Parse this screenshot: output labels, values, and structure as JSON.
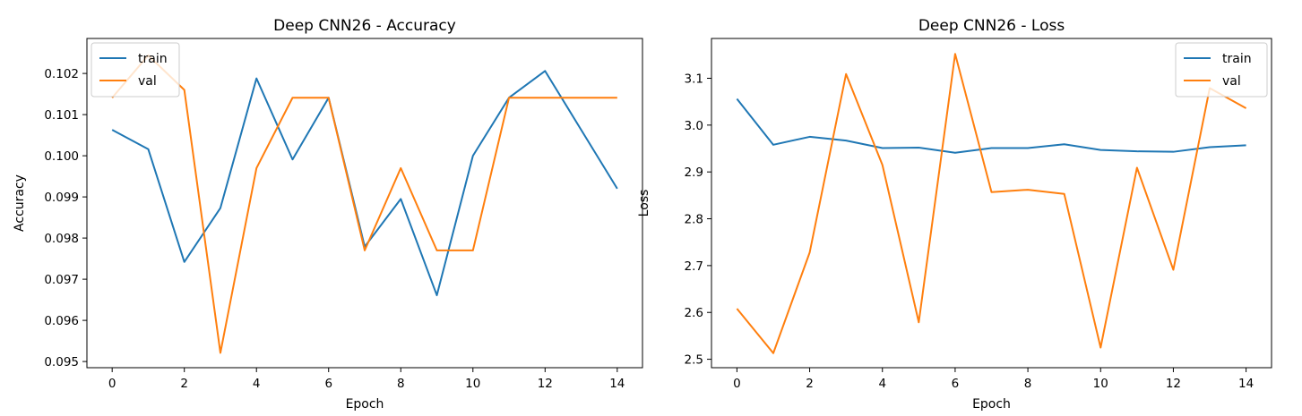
{
  "colors": {
    "train": "#1f77b4",
    "val": "#ff7f0e"
  },
  "chart_data": [
    {
      "type": "line",
      "title": "Deep CNN26 - Accuracy",
      "xlabel": "Epoch",
      "ylabel": "Accuracy",
      "x": [
        0,
        1,
        2,
        3,
        4,
        5,
        6,
        7,
        8,
        9,
        10,
        11,
        12,
        13,
        14
      ],
      "xlim": [
        -0.7,
        14.7
      ],
      "ylim": [
        0.09485,
        0.10285
      ],
      "xticks": [
        0,
        2,
        4,
        6,
        8,
        10,
        12,
        14
      ],
      "xtick_labels": [
        "0",
        "2",
        "4",
        "6",
        "8",
        "10",
        "12",
        "14"
      ],
      "yticks": [
        0.095,
        0.096,
        0.097,
        0.098,
        0.099,
        0.1,
        0.101,
        0.102
      ],
      "ytick_labels": [
        "0.095",
        "0.096",
        "0.097",
        "0.098",
        "0.099",
        "0.100",
        "0.101",
        "0.102"
      ],
      "legend": "upper-left",
      "series": [
        {
          "name": "train",
          "values": [
            0.10063,
            0.10016,
            0.09742,
            0.09873,
            0.10188,
            0.09991,
            0.10141,
            0.09779,
            0.09895,
            0.09661,
            0.1,
            0.10141,
            0.10206,
            0.10063,
            0.0992
          ]
        },
        {
          "name": "val",
          "values": [
            0.10141,
            0.10244,
            0.1016,
            0.09521,
            0.0997,
            0.10141,
            0.10141,
            0.0977,
            0.0997,
            0.0977,
            0.0977,
            0.10141,
            0.10141,
            0.10141,
            0.10141
          ]
        }
      ]
    },
    {
      "type": "line",
      "title": "Deep CNN26 - Loss",
      "xlabel": "Epoch",
      "ylabel": "Loss",
      "x": [
        0,
        1,
        2,
        3,
        4,
        5,
        6,
        7,
        8,
        9,
        10,
        11,
        12,
        13,
        14
      ],
      "xlim": [
        -0.7,
        14.7
      ],
      "ylim": [
        2.482,
        3.185
      ],
      "xticks": [
        0,
        2,
        4,
        6,
        8,
        10,
        12,
        14
      ],
      "xtick_labels": [
        "0",
        "2",
        "4",
        "6",
        "8",
        "10",
        "12",
        "14"
      ],
      "yticks": [
        2.5,
        2.6,
        2.7,
        2.8,
        2.9,
        3.0,
        3.1
      ],
      "ytick_labels": [
        "2.5",
        "2.6",
        "2.7",
        "2.8",
        "2.9",
        "3.0",
        "3.1"
      ],
      "legend": "upper-right",
      "series": [
        {
          "name": "train",
          "values": [
            3.056,
            2.958,
            2.975,
            2.967,
            2.951,
            2.952,
            2.941,
            2.951,
            2.951,
            2.959,
            2.947,
            2.944,
            2.943,
            2.953,
            2.957
          ]
        },
        {
          "name": "val",
          "values": [
            2.608,
            2.513,
            2.728,
            3.109,
            2.915,
            2.579,
            3.152,
            2.857,
            2.862,
            2.853,
            2.525,
            2.909,
            2.691,
            3.079,
            3.036
          ]
        }
      ]
    }
  ]
}
